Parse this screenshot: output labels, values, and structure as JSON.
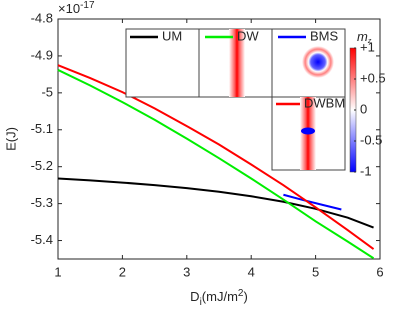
{
  "chart_data": {
    "type": "line",
    "xlabel": {
      "main": "D",
      "sub": "i",
      "unit": "(mJ/m",
      "sup": "2",
      "close": ")"
    },
    "ylabel": "E(J)",
    "multiplier": {
      "base": "×10",
      "exponent": "-17"
    },
    "xlim": [
      1,
      6
    ],
    "xticks": [
      1,
      2,
      3,
      4,
      5,
      6
    ],
    "ylim": [
      -5.45,
      -4.8
    ],
    "yticks": [
      -5.4,
      -5.3,
      -5.2,
      -5.1,
      -5,
      -4.9,
      -4.8
    ],
    "grid": false,
    "series": [
      {
        "name": "UM",
        "color": "#000000",
        "x": [
          1,
          1.5,
          2,
          2.5,
          3,
          3.5,
          4,
          4.5,
          5,
          5.5,
          5.9
        ],
        "values": [
          -5.232,
          -5.237,
          -5.243,
          -5.25,
          -5.258,
          -5.268,
          -5.28,
          -5.295,
          -5.314,
          -5.338,
          -5.365
        ]
      },
      {
        "name": "DW",
        "color": "#00ee00",
        "x": [
          1,
          1.5,
          2,
          2.5,
          3,
          3.5,
          4,
          4.5,
          5,
          5.5,
          5.9
        ],
        "values": [
          -4.938,
          -4.98,
          -5.025,
          -5.073,
          -5.124,
          -5.177,
          -5.232,
          -5.289,
          -5.348,
          -5.403,
          -5.448
        ]
      },
      {
        "name": "BMS",
        "color": "#0000ff",
        "x": [
          4.5,
          4.8,
          5.1,
          5.4
        ],
        "values": [
          -5.276,
          -5.29,
          -5.303,
          -5.316
        ]
      },
      {
        "name": "DWBM",
        "color": "#ff0000",
        "x": [
          1,
          1.5,
          2,
          2.5,
          3,
          3.5,
          4,
          4.5,
          5,
          5.5,
          5.9
        ],
        "values": [
          -4.925,
          -4.96,
          -4.998,
          -5.042,
          -5.09,
          -5.14,
          -5.194,
          -5.25,
          -5.31,
          -5.372,
          -5.423
        ]
      }
    ],
    "colorbar": {
      "label": "m",
      "label_sub": "z",
      "lim": [
        -1,
        1
      ],
      "ticks": [
        {
          "value": 1,
          "label": "+1"
        },
        {
          "value": 0.5,
          "label": "+0.5"
        },
        0,
        -0.5,
        -1
      ]
    }
  }
}
